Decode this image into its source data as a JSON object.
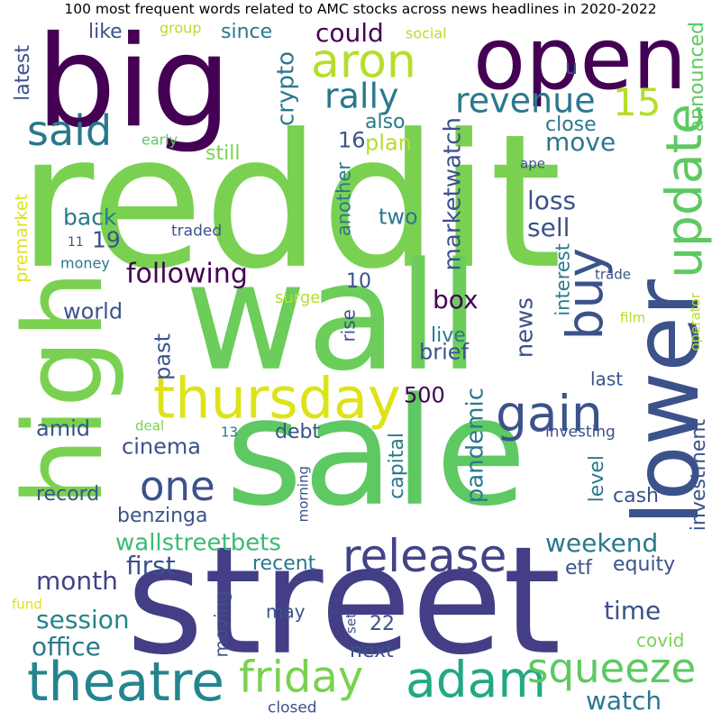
{
  "chart_data": {
    "type": "wordcloud",
    "title": "100 most frequent words related to AMC stocks across news headlines in 2020-2022",
    "colormap": "viridis",
    "background": "#ffffff",
    "words": [
      {
        "text": "reddit",
        "color": "#7ad151"
      },
      {
        "text": "wall",
        "color": "#6ccd5a"
      },
      {
        "text": "sale",
        "color": "#5ec962"
      },
      {
        "text": "street",
        "color": "#433e85"
      },
      {
        "text": "big",
        "color": "#440154"
      },
      {
        "text": "high",
        "color": "#7ad151"
      },
      {
        "text": "open",
        "color": "#440154"
      },
      {
        "text": "lower",
        "color": "#3b528b"
      },
      {
        "text": "release",
        "color": "#414487"
      },
      {
        "text": "theatre",
        "color": "#25848e"
      },
      {
        "text": "thursday",
        "color": "#dde318"
      },
      {
        "text": "adam",
        "color": "#22a884"
      },
      {
        "text": "friday",
        "color": "#7ad151"
      },
      {
        "text": "squeeze",
        "color": "#5ec962"
      },
      {
        "text": "gain",
        "color": "#3b528b"
      },
      {
        "text": "buy",
        "color": "#3b528b"
      },
      {
        "text": "update",
        "color": "#5ec962"
      },
      {
        "text": "aron",
        "color": "#b5de2b"
      },
      {
        "text": "said",
        "color": "#2a788e"
      },
      {
        "text": "rally",
        "color": "#2a788e"
      },
      {
        "text": "revenue",
        "color": "#2a788e"
      },
      {
        "text": "15",
        "color": "#b5de2b"
      },
      {
        "text": "one",
        "color": "#3b528b"
      },
      {
        "text": "wallstreetbets",
        "color": "#3bbb75"
      },
      {
        "text": "following",
        "color": "#440154"
      },
      {
        "text": "month",
        "color": "#414487"
      },
      {
        "text": "session",
        "color": "#25848e"
      },
      {
        "text": "office",
        "color": "#2a788e"
      },
      {
        "text": "weekend",
        "color": "#2a788e"
      },
      {
        "text": "first",
        "color": "#3b528b"
      },
      {
        "text": "crypto",
        "color": "#2a788e"
      },
      {
        "text": "could",
        "color": "#440154"
      },
      {
        "text": "box",
        "color": "#440154"
      },
      {
        "text": "time",
        "color": "#3b528b"
      },
      {
        "text": "watch",
        "color": "#2a788e"
      },
      {
        "text": "loss",
        "color": "#3b528b"
      },
      {
        "text": "sell",
        "color": "#3b528b"
      },
      {
        "text": "move",
        "color": "#2a788e"
      },
      {
        "text": "back",
        "color": "#2a788e"
      },
      {
        "text": "19",
        "color": "#3b528b"
      },
      {
        "text": "marketwatch",
        "color": "#3b528b"
      },
      {
        "text": "pandemic",
        "color": "#2a788e"
      },
      {
        "text": "news",
        "color": "#3b528b"
      },
      {
        "text": "amid",
        "color": "#3b528b"
      },
      {
        "text": "cinema",
        "color": "#3b528b"
      },
      {
        "text": "record",
        "color": "#3b528b"
      },
      {
        "text": "benzinga",
        "color": "#3b528b"
      },
      {
        "text": "past",
        "color": "#3b528b"
      },
      {
        "text": "world",
        "color": "#3b528b"
      },
      {
        "text": "500",
        "color": "#440154"
      },
      {
        "text": "two",
        "color": "#2a788e"
      },
      {
        "text": "plan",
        "color": "#b5de2b"
      },
      {
        "text": "16",
        "color": "#3b528b"
      },
      {
        "text": "still",
        "color": "#7ad151"
      },
      {
        "text": "also",
        "color": "#2a788e"
      },
      {
        "text": "close",
        "color": "#2a788e"
      },
      {
        "text": "announced",
        "color": "#5ec962"
      },
      {
        "text": "u",
        "color": "#3b528b"
      },
      {
        "text": "like",
        "color": "#3b528b"
      },
      {
        "text": "since",
        "color": "#2a788e"
      },
      {
        "text": "latest",
        "color": "#3b528b"
      },
      {
        "text": "early",
        "color": "#5ec962"
      },
      {
        "text": "group",
        "color": "#b5de2b"
      },
      {
        "text": "social",
        "color": "#b5de2b"
      },
      {
        "text": "premarket",
        "color": "#dde318"
      },
      {
        "text": "traded",
        "color": "#3b528b"
      },
      {
        "text": "11",
        "color": "#3b528b"
      },
      {
        "text": "money",
        "color": "#2a788e"
      },
      {
        "text": "surge",
        "color": "#b5de2b"
      },
      {
        "text": "another",
        "color": "#2a788e"
      },
      {
        "text": "10",
        "color": "#3b528b"
      },
      {
        "text": "rise",
        "color": "#3b528b"
      },
      {
        "text": "live",
        "color": "#2a788e"
      },
      {
        "text": "brief",
        "color": "#3b528b"
      },
      {
        "text": "interest",
        "color": "#2a788e"
      },
      {
        "text": "last",
        "color": "#3b528b"
      },
      {
        "text": "ape",
        "color": "#3b528b"
      },
      {
        "text": "trade",
        "color": "#3b528b"
      },
      {
        "text": "film",
        "color": "#b5de2b"
      },
      {
        "text": "operator",
        "color": "#b5de2b"
      },
      {
        "text": "investing",
        "color": "#3b528b"
      },
      {
        "text": "deal",
        "color": "#7ad151"
      },
      {
        "text": "13",
        "color": "#2a788e"
      },
      {
        "text": "debt",
        "color": "#3b528b"
      },
      {
        "text": "capital",
        "color": "#2a788e"
      },
      {
        "text": "level",
        "color": "#2a788e"
      },
      {
        "text": "cash",
        "color": "#3b528b"
      },
      {
        "text": "investment",
        "color": "#3b528b"
      },
      {
        "text": "morning",
        "color": "#3b528b"
      },
      {
        "text": "recent",
        "color": "#2a788e"
      },
      {
        "text": "etf",
        "color": "#3b528b"
      },
      {
        "text": "equity",
        "color": "#3b528b"
      },
      {
        "text": "moving",
        "color": "#3b528b"
      },
      {
        "text": "may",
        "color": "#3b528b"
      },
      {
        "text": "set",
        "color": "#3b528b"
      },
      {
        "text": "22",
        "color": "#3b528b"
      },
      {
        "text": "next",
        "color": "#3b528b"
      },
      {
        "text": "covid",
        "color": "#7ad151"
      },
      {
        "text": "fund",
        "color": "#dde318"
      },
      {
        "text": "closed",
        "color": "#3b528b"
      }
    ]
  }
}
